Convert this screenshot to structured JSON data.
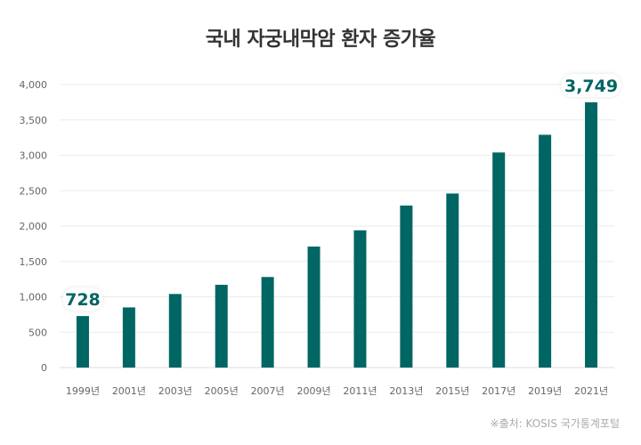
{
  "chart_data": {
    "type": "bar",
    "title": "국내 자궁내막암 환자 증가율",
    "categories": [
      "1999년",
      "2001년",
      "2003년",
      "2005년",
      "2007년",
      "2009년",
      "2011년",
      "2013년",
      "2015년",
      "2017년",
      "2019년",
      "2021년"
    ],
    "values": [
      728,
      850,
      1040,
      1170,
      1280,
      1710,
      1940,
      2290,
      2460,
      3040,
      3290,
      3749
    ],
    "ylim": [
      0,
      4000
    ],
    "yticks": [
      0,
      500,
      1000,
      1500,
      2000,
      2500,
      3000,
      3500,
      4000
    ],
    "ytick_labels": [
      "0",
      "500",
      "1,000",
      "1,500",
      "2,000",
      "2,500",
      "3,000",
      "3,500",
      "4,000"
    ],
    "grid": true,
    "legend": "none",
    "bar_color": "#006663",
    "annotations": [
      {
        "category": "1999년",
        "text": "728"
      },
      {
        "category": "2021년",
        "text": "3,749"
      }
    ]
  },
  "source": "※출처: KOSIS 국가통계포털"
}
